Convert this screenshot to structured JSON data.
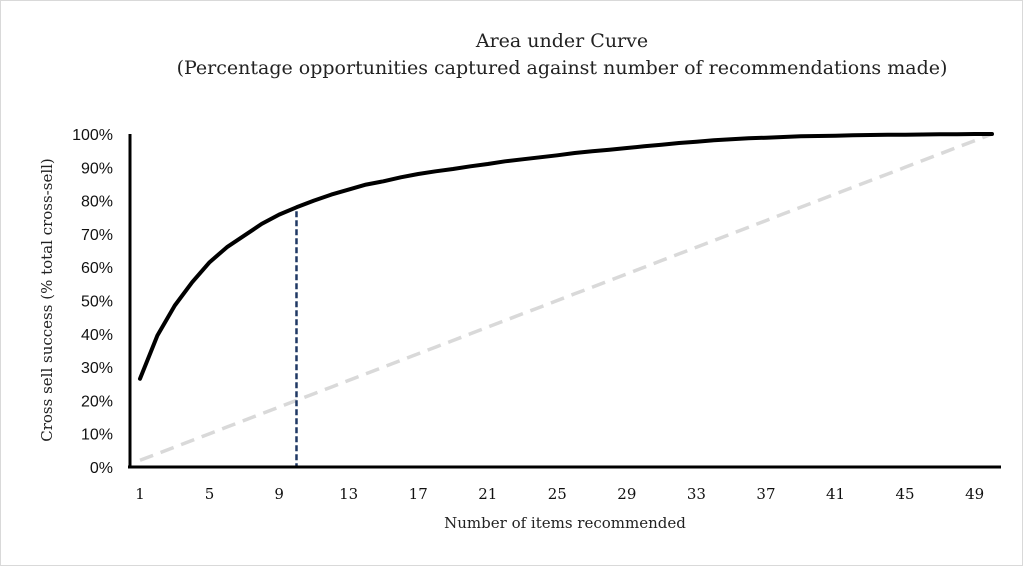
{
  "chart_data": {
    "type": "line",
    "title": "Area under Curve",
    "subtitle": "(Percentage opportunities captured against number of recommendations made)",
    "xlabel": "Number of items recommended",
    "ylabel": "Cross sell success (% total cross-sell)",
    "xlim": [
      1,
      50
    ],
    "ylim": [
      0,
      100
    ],
    "x_ticks": [
      "1",
      "5",
      "9",
      "13",
      "17",
      "21",
      "25",
      "29",
      "33",
      "37",
      "41",
      "45",
      "49"
    ],
    "y_ticks": [
      "0%",
      "10%",
      "20%",
      "30%",
      "40%",
      "50%",
      "60%",
      "70%",
      "80%",
      "90%",
      "100%"
    ],
    "grid": false,
    "x": [
      1,
      2,
      3,
      4,
      5,
      6,
      7,
      8,
      9,
      10,
      11,
      12,
      13,
      14,
      15,
      16,
      17,
      18,
      19,
      20,
      21,
      22,
      23,
      24,
      25,
      26,
      27,
      28,
      29,
      30,
      31,
      32,
      33,
      34,
      35,
      36,
      37,
      38,
      39,
      40,
      41,
      42,
      43,
      44,
      45,
      46,
      47,
      48,
      49,
      50
    ],
    "series": [
      {
        "style": "solid",
        "color": "#000000",
        "values": [
          26.5,
          39.5,
          48.5,
          55.5,
          61.5,
          66,
          69.5,
          73,
          75.8,
          78,
          80,
          81.8,
          83.3,
          84.8,
          85.8,
          87,
          88,
          88.8,
          89.5,
          90.3,
          91,
          91.8,
          92.4,
          93,
          93.6,
          94.3,
          94.8,
          95.3,
          95.8,
          96.3,
          96.8,
          97.3,
          97.7,
          98.1,
          98.4,
          98.7,
          98.9,
          99.1,
          99.3,
          99.4,
          99.5,
          99.6,
          99.7,
          99.75,
          99.8,
          99.85,
          99.9,
          99.95,
          100,
          100
        ]
      },
      {
        "style": "dashed",
        "color": "#d9d9d9",
        "values": [
          2,
          4,
          6,
          8,
          10,
          12,
          14,
          16,
          18,
          20,
          22,
          24,
          26,
          28,
          30,
          32,
          34,
          36,
          38,
          40,
          42,
          44,
          46,
          48,
          50,
          52,
          54,
          56,
          58,
          60,
          62,
          64,
          66,
          68,
          70,
          72,
          74,
          76,
          78,
          80,
          82,
          84,
          86,
          88,
          90,
          92,
          94,
          96,
          98,
          100
        ]
      }
    ],
    "reference_line": {
      "x": 10,
      "y": 78,
      "style": "dashed",
      "color": "#1f3864"
    }
  }
}
